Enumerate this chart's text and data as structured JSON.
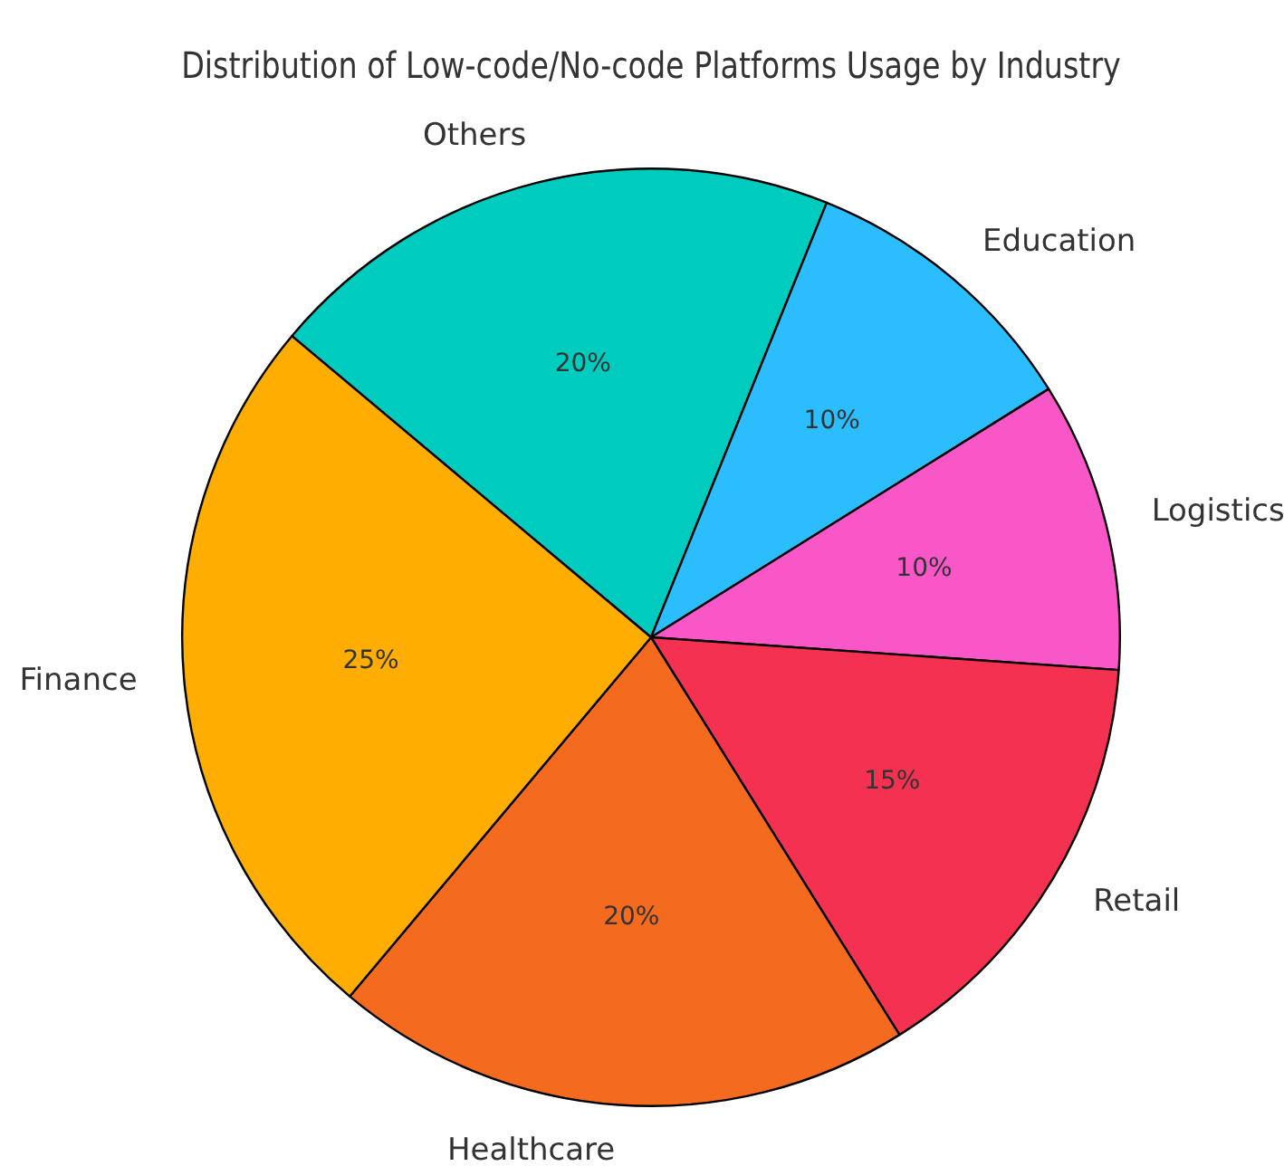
{
  "chart_data": {
    "type": "pie",
    "title": "Distribution of Low-code/No-code Platforms Usage by Industry",
    "categories": [
      "Finance",
      "Healthcare",
      "Retail",
      "Logistics",
      "Education",
      "Others"
    ],
    "values": [
      25,
      20,
      15,
      10,
      10,
      20
    ],
    "value_labels": [
      "25%",
      "20%",
      "15%",
      "10%",
      "10%",
      "20%"
    ],
    "colors": [
      "#ffad00",
      "#f46b20",
      "#f53152",
      "#f957c7",
      "#2bbdfd",
      "#00cbbf"
    ]
  }
}
